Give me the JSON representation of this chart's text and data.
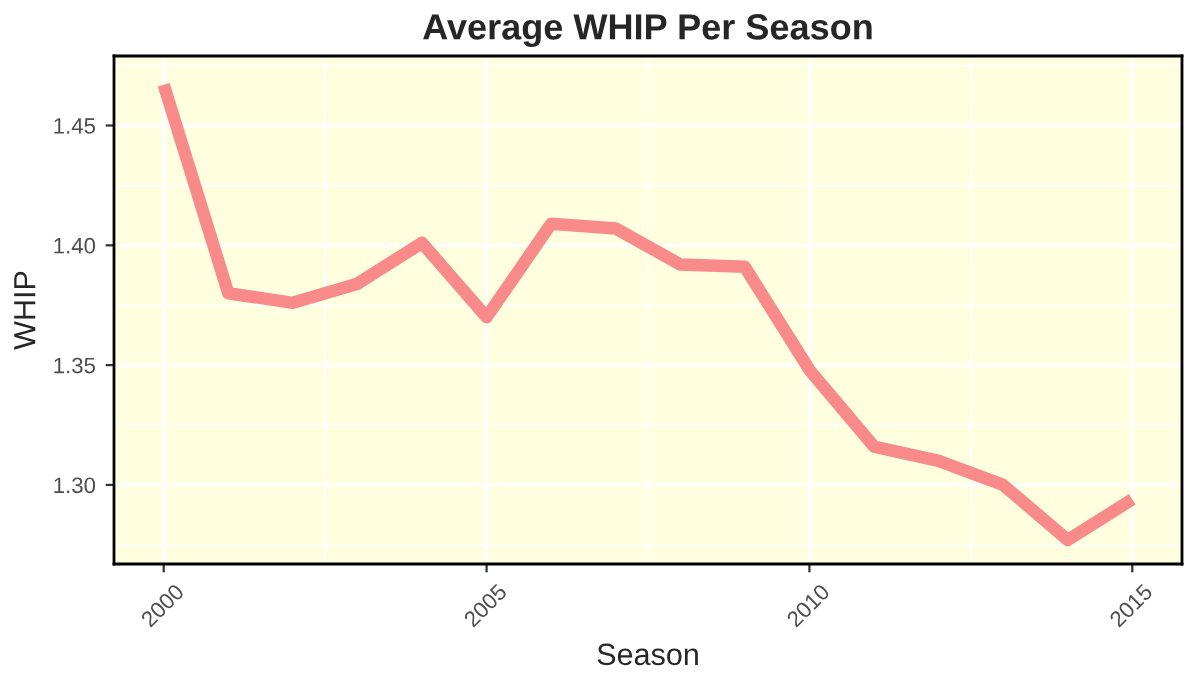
{
  "chart_data": {
    "type": "line",
    "title": "Average WHIP Per Season",
    "xlabel": "Season",
    "ylabel": "WHIP",
    "x": [
      2000,
      2001,
      2002,
      2003,
      2004,
      2005,
      2006,
      2007,
      2008,
      2009,
      2010,
      2011,
      2012,
      2013,
      2014,
      2015
    ],
    "series": [
      {
        "color": "#f88a8a",
        "values": [
          1.467,
          1.38,
          1.376,
          1.384,
          1.401,
          1.37,
          1.409,
          1.407,
          1.392,
          1.391,
          1.348,
          1.316,
          1.31,
          1.3,
          1.277,
          1.294
        ]
      }
    ],
    "xlim": [
      1999.23,
      2015.77
    ],
    "ylim": [
      1.267,
      1.479
    ],
    "xticks": [
      2000,
      2005,
      2010,
      2015
    ],
    "yticks": [
      {
        "value": 1.3,
        "label": "1.30"
      },
      {
        "value": 1.35,
        "label": "1.35"
      },
      {
        "value": 1.4,
        "label": "1.40"
      },
      {
        "value": 1.45,
        "label": "1.45"
      }
    ],
    "grid": true,
    "line_style": "solid",
    "marker": "none"
  }
}
